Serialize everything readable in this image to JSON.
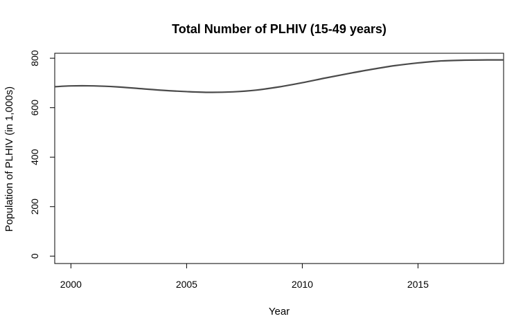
{
  "chart_data": {
    "type": "line",
    "title": "Total Number of PLHIV (15-49 years)",
    "xlabel": "Year",
    "ylabel": "Population of PLHIV  (in 1,000s)",
    "xlim": [
      1999.3,
      2018.7
    ],
    "ylim": [
      -30,
      820
    ],
    "x_ticks": [
      2000,
      2005,
      2010,
      2015
    ],
    "x_tick_labels": [
      "2000",
      "2005",
      "2010",
      "2015"
    ],
    "y_ticks": [
      0,
      200,
      400,
      600,
      800
    ],
    "y_tick_labels": [
      "0",
      "200",
      "400",
      "600",
      "800"
    ],
    "grid": false,
    "legend": "none",
    "series": [
      {
        "color": "#4a4a4a",
        "x": [
          1999,
          2000,
          2001,
          2002,
          2003,
          2004,
          2005,
          2006,
          2007,
          2008,
          2009,
          2010,
          2011,
          2012,
          2013,
          2014,
          2015,
          2016,
          2017,
          2018,
          2019
        ],
        "y": [
          683,
          688,
          688,
          684,
          677,
          670,
          665,
          662,
          664,
          671,
          684,
          701,
          720,
          738,
          755,
          770,
          781,
          789,
          792,
          793,
          793
        ]
      }
    ]
  }
}
